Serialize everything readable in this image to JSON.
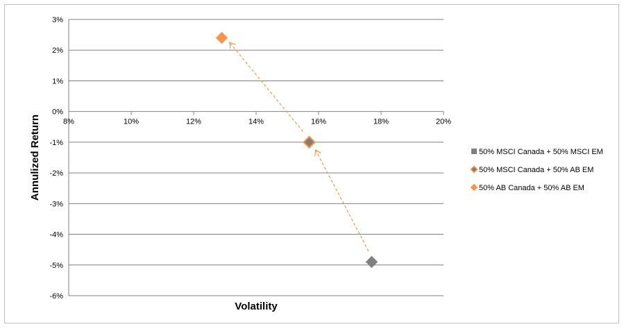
{
  "chart_data": {
    "type": "scatter",
    "xlabel": "Volatility",
    "ylabel": "Annulized Return",
    "xlim": [
      0.08,
      0.2
    ],
    "ylim": [
      -0.06,
      0.03
    ],
    "x_ticks": [
      0.08,
      0.1,
      0.12,
      0.14,
      0.16,
      0.18,
      0.2
    ],
    "x_tick_labels": [
      "8%",
      "10%",
      "12%",
      "14%",
      "16%",
      "18%",
      "20%"
    ],
    "y_ticks": [
      0.03,
      0.02,
      0.01,
      0.0,
      -0.01,
      -0.02,
      -0.03,
      -0.04,
      -0.05,
      -0.06
    ],
    "y_tick_labels": [
      "3%",
      "2%",
      "1%",
      "0%",
      "-1%",
      "-2%",
      "-3%",
      "-4%",
      "-5%",
      "-6%"
    ],
    "grid": "horizontal",
    "legend_position": "right",
    "series": [
      {
        "name": "50% MSCI Canada + 50% MSCI EM",
        "x": [
          0.177
        ],
        "y": [
          -0.049
        ],
        "color": "#7f7f7f",
        "marker": "diamond"
      },
      {
        "name": "50% MSCI Canada + 50% AB EM",
        "x": [
          0.157
        ],
        "y": [
          -0.01
        ],
        "color": "#7f7f7f",
        "edge_color": "#f79646",
        "marker": "diamond"
      },
      {
        "name": "50% AB Canada + 50% AB EM",
        "x": [
          0.129
        ],
        "y": [
          0.024
        ],
        "color": "#f79646",
        "marker": "diamond"
      }
    ],
    "annotations": [
      {
        "type": "dashed-arrow",
        "from": [
          0.176,
          -0.0455
        ],
        "to": [
          0.159,
          -0.0125
        ],
        "color": "#f79646"
      },
      {
        "type": "dashed-arrow",
        "from": [
          0.155,
          -0.0065
        ],
        "to": [
          0.1315,
          0.0225
        ],
        "color": "#f79646"
      }
    ]
  }
}
